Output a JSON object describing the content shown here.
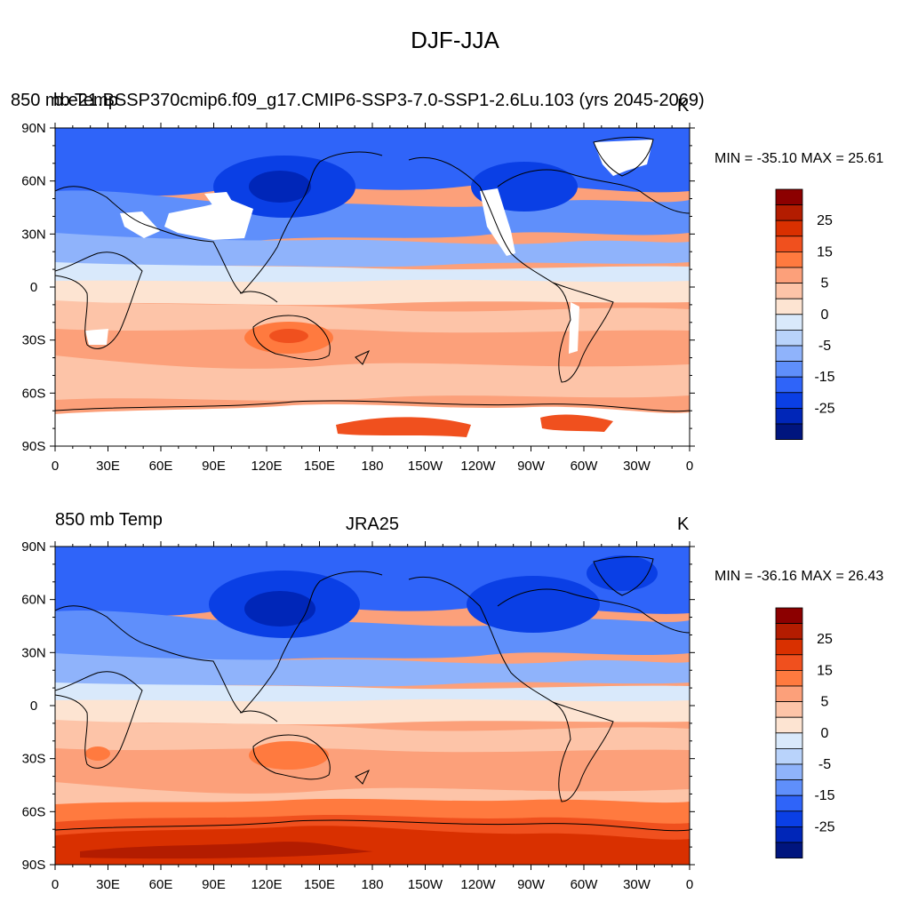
{
  "figure_title": "DJF-JJA",
  "colorbar_ticks": [
    "25",
    "15",
    "5",
    "0",
    "-5",
    "-15",
    "-25"
  ],
  "colorbar_colors": [
    "#8c0000",
    "#b31c00",
    "#d93000",
    "#f0501e",
    "#ff7a3f",
    "#fca07a",
    "#fdc4a8",
    "#fde4d2",
    "#d9e9fb",
    "#b9d3fb",
    "#8fb3fb",
    "#5f8ffb",
    "#2f64f9",
    "#0a3fe5",
    "#0026b8",
    "#00157e"
  ],
  "lon_labels": [
    "0",
    "30E",
    "60E",
    "90E",
    "120E",
    "150E",
    "180",
    "150W",
    "120W",
    "90W",
    "60W",
    "30W",
    "0"
  ],
  "lat_labels": [
    "90N",
    "60N",
    "30N",
    "0",
    "30S",
    "60S",
    "90S"
  ],
  "panels": [
    {
      "left_title": "850 mb Temp",
      "center_title": "b.e21.BSSP370cmip6.f09_g17.CMIP6-SSP3-7.0-SSP1-2.6Lu.103 (yrs 2045-2069)",
      "units": "K",
      "min_max": "MIN = -35.10 MAX =  25.61",
      "has_missing_data": true
    },
    {
      "left_title": "850 mb Temp",
      "center_title": "JRA25",
      "units": "K",
      "min_max": "MIN = -36.16 MAX =  26.43",
      "has_missing_data": false
    }
  ]
}
